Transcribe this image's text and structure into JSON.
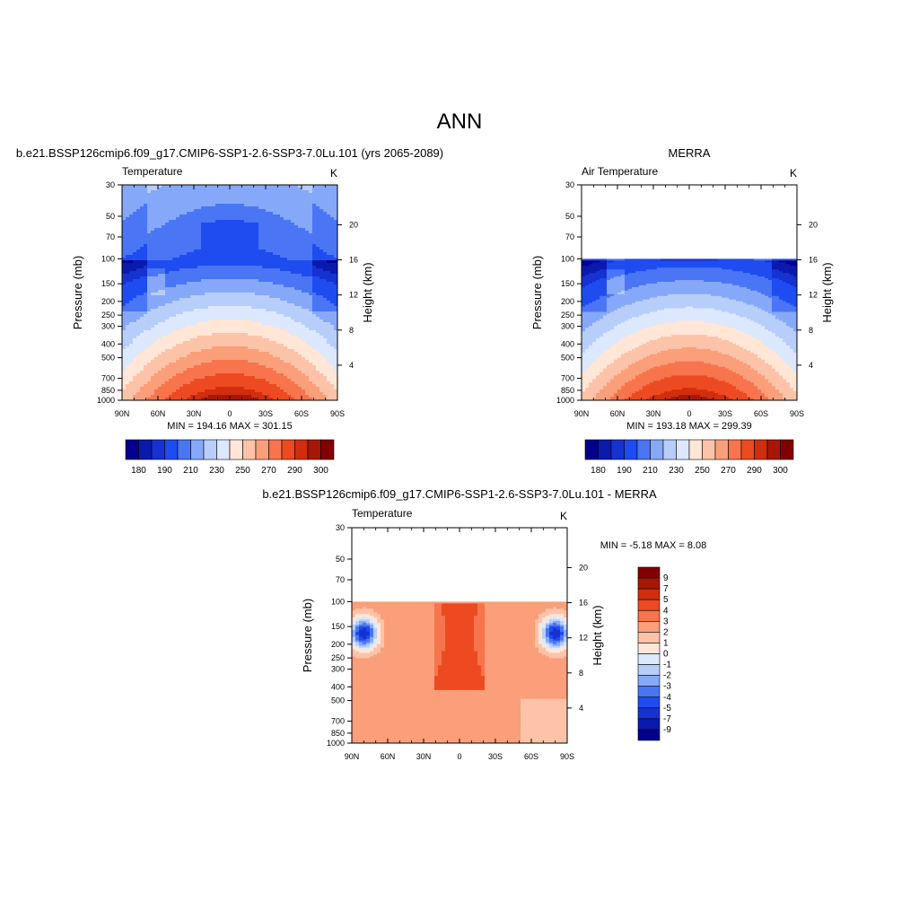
{
  "figure": {
    "title": "ANN"
  },
  "panels": [
    {
      "id": "model",
      "title": "b.e21.BSSP126cmip6.f09_g17.CMIP6-SSP1-2.6-SSP3-7.0Lu.101 (yrs 2065-2089)",
      "left_label": "Temperature",
      "right_label": "K",
      "ylabel": "Pressure (mb)",
      "ylabel_right": "Height (km)",
      "stats": "MIN = 194.16  MAX = 301.15",
      "palette": "temp",
      "top_pressure": 30,
      "pattern": "model"
    },
    {
      "id": "merra",
      "title": "MERRA",
      "left_label": "Air Temperature",
      "right_label": "K",
      "ylabel": "Pressure (mb)",
      "ylabel_right": "Height (km)",
      "stats": "MIN = 193.18  MAX = 299.39",
      "palette": "temp",
      "top_pressure": 100,
      "pattern": "merra"
    },
    {
      "id": "diff",
      "title": "b.e21.BSSP126cmip6.f09_g17.CMIP6-SSP1-2.6-SSP3-7.0Lu.101 - MERRA",
      "left_label": "Temperature",
      "right_label": "K",
      "ylabel": "Pressure (mb)",
      "ylabel_right": "Height (km)",
      "stats": "MIN =  -5.18  MAX =   8.08",
      "palette": "diff",
      "top_pressure": 100,
      "pattern": "diff"
    }
  ],
  "chart_data": {
    "type": "heatmap",
    "x_ticks": [
      "90N",
      "60N",
      "30N",
      "0",
      "30S",
      "60S",
      "90S"
    ],
    "x_values": [
      90,
      60,
      30,
      0,
      -30,
      -60,
      -90
    ],
    "pressure_ticks": [
      30,
      50,
      70,
      100,
      150,
      200,
      250,
      300,
      400,
      500,
      700,
      850,
      1000
    ],
    "height_ticks": [
      4,
      8,
      12,
      16,
      20
    ],
    "y_scale": "log",
    "temp_colorbar": {
      "labels": [
        "180",
        "190",
        "210",
        "230",
        "250",
        "270",
        "290",
        "300"
      ],
      "colors": [
        "#02008c",
        "#0a1aad",
        "#1632d0",
        "#1e4cf0",
        "#4a76f5",
        "#86a8f8",
        "#b8cefa",
        "#dbe8fd",
        "#ffe6d6",
        "#fdc3a8",
        "#fb9e7a",
        "#f7744c",
        "#ed4a22",
        "#d02e0e",
        "#a81606",
        "#820000"
      ]
    },
    "diff_colorbar": {
      "labels": [
        "9",
        "7",
        "5",
        "4",
        "3",
        "2",
        "1",
        "0",
        "-1",
        "-2",
        "-3",
        "-4",
        "-5",
        "-7",
        "-9"
      ],
      "colors": [
        "#820000",
        "#a81606",
        "#d02e0e",
        "#ed4a22",
        "#f7744c",
        "#fb9e7a",
        "#fdc3a8",
        "#ffe6d6",
        "#dbe8fd",
        "#b8cefa",
        "#86a8f8",
        "#4a76f5",
        "#1e4cf0",
        "#1632d0",
        "#0a1aad",
        "#02008c"
      ]
    }
  }
}
